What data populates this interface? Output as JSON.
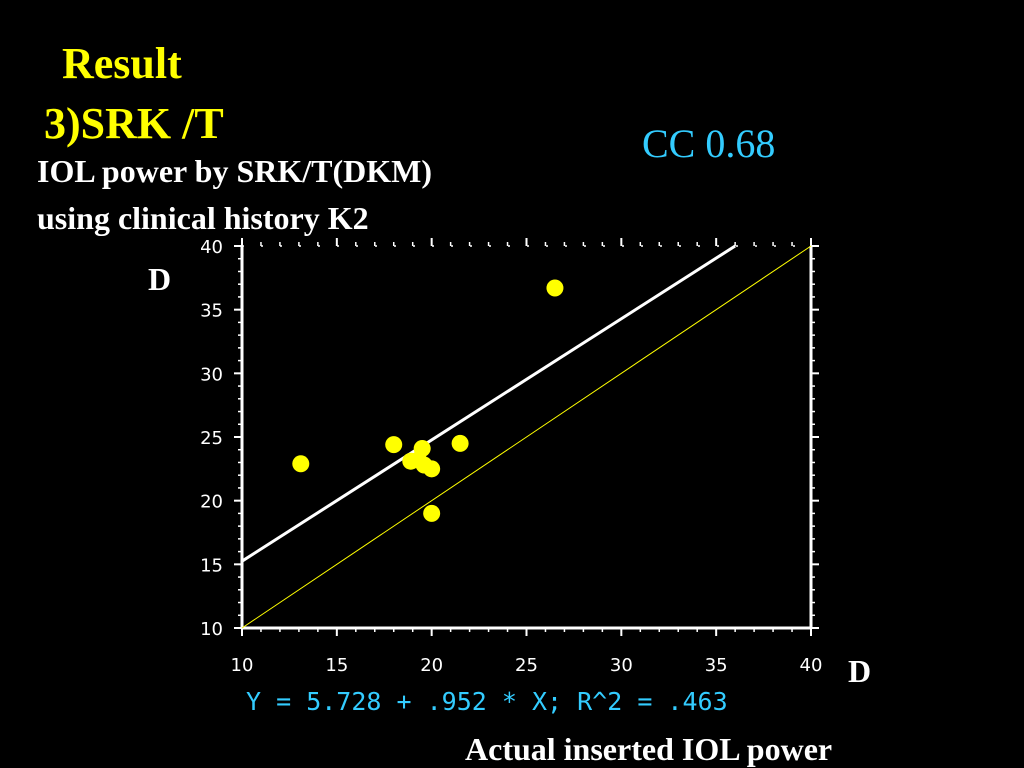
{
  "slide": {
    "title_line1": "Result",
    "title_line2": "3)SRK /T",
    "subtitle_line1": "IOL power by SRK/T(DKM)",
    "subtitle_line2": "using clinical history K2",
    "cc_label": "CC 0.68"
  },
  "colors": {
    "title": "#ffff00",
    "accent": "#33ccff",
    "points": "#ffff00",
    "identity_line": "#ffff00",
    "regression_line": "#ffffff"
  },
  "chart_data": {
    "type": "scatter",
    "xlabel": "Actual inserted IOL power",
    "x_unit": "D",
    "ylabel": "",
    "y_unit": "D",
    "xlim": [
      10,
      40
    ],
    "ylim": [
      10,
      40
    ],
    "xticks": [
      10,
      15,
      20,
      25,
      30,
      35,
      40
    ],
    "yticks": [
      10,
      15,
      20,
      25,
      30,
      35,
      40
    ],
    "points": [
      {
        "x": 13.1,
        "y": 22.9
      },
      {
        "x": 18.0,
        "y": 24.4
      },
      {
        "x": 18.9,
        "y": 23.1
      },
      {
        "x": 19.3,
        "y": 23.2
      },
      {
        "x": 19.5,
        "y": 24.1
      },
      {
        "x": 19.6,
        "y": 22.8
      },
      {
        "x": 20.0,
        "y": 22.5
      },
      {
        "x": 20.0,
        "y": 19.0
      },
      {
        "x": 21.5,
        "y": 24.5
      },
      {
        "x": 26.5,
        "y": 36.7
      }
    ],
    "regression": {
      "intercept": 5.728,
      "slope": 0.952,
      "r_squared": 0.463,
      "equation_text": "Y = 5.728 + .952 * X; R^2 = .463"
    },
    "identity_line": true,
    "grid": false,
    "legend": "none"
  }
}
